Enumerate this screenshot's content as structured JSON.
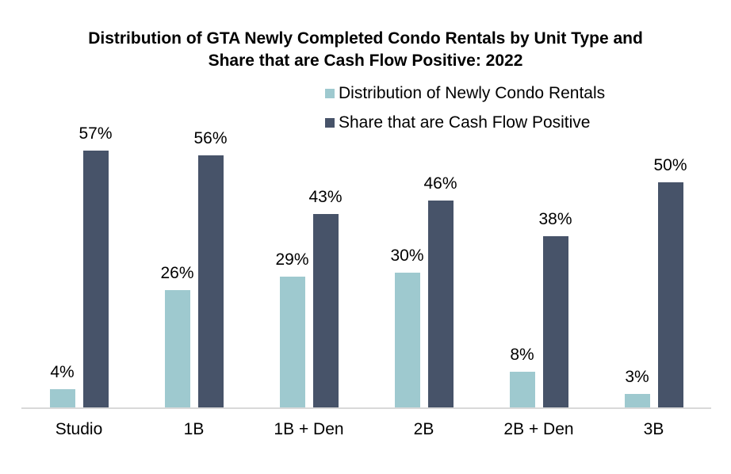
{
  "title": {
    "lines": [
      "Distribution of GTA Newly Completed Condo Rentals by Unit Type and",
      "Share that are Cash Flow Positive: 2022"
    ]
  },
  "colors": {
    "series1": "#9EC9CF",
    "series2": "#475369",
    "axis_line": "#D9D9D9",
    "text": "#000000",
    "background": "#FFFFFF"
  },
  "chart_data": {
    "type": "bar",
    "title": "Distribution of GTA Newly Completed Condo Rentals by Unit Type and Share that are Cash Flow Positive: 2022",
    "categories": [
      "Studio",
      "1B",
      "1B + Den",
      "2B",
      "2B + Den",
      "3B"
    ],
    "series": [
      {
        "name": "Distribution of Newly Condo Rentals",
        "color": "#9EC9CF",
        "values": [
          4,
          26,
          29,
          30,
          8,
          3
        ]
      },
      {
        "name": "Share that are Cash Flow Positive",
        "color": "#475369",
        "values": [
          57,
          56,
          43,
          46,
          38,
          50
        ]
      }
    ],
    "value_suffix": "%",
    "xlabel": "",
    "ylabel": "",
    "ylim": [
      0,
      62
    ],
    "grid": false,
    "y_axis_visible": false,
    "data_labels": "above-bars",
    "legend_position": "top-right"
  }
}
